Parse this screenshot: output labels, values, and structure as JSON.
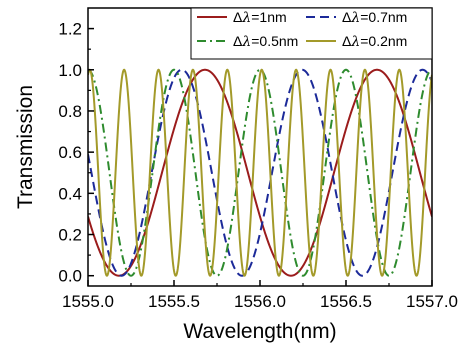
{
  "chart_data": {
    "type": "line",
    "xlabel": "Wavelength(nm)",
    "ylabel": "Transmission",
    "xlim": [
      1555.0,
      1557.0
    ],
    "ylim": [
      -0.05,
      1.3
    ],
    "xticks": [
      1555.0,
      1555.5,
      1556.0,
      1556.5,
      1557.0
    ],
    "xtick_labels": [
      "1555.0",
      "1555.5",
      "1556.0",
      "1556.5",
      "1557.0"
    ],
    "yticks": [
      0.0,
      0.2,
      0.4,
      0.6,
      0.8,
      1.0,
      1.2
    ],
    "ytick_labels": [
      "0.0",
      "0.2",
      "0.4",
      "0.6",
      "0.8",
      "1.0",
      "1.2"
    ],
    "legend_placement": "top-right",
    "series": [
      {
        "name_prefix": "Δ",
        "name_symbol": "λ",
        "name_suffix": "=1nm",
        "color": "#9b1c1c",
        "dash": "solid",
        "fsr": 1.0,
        "peaks": [
          1555.68,
          1556.68
        ]
      },
      {
        "name_prefix": "Δ",
        "name_symbol": "λ",
        "name_suffix": "=0.7nm",
        "color": "#1c2a99",
        "dash": "dash",
        "fsr": 0.7,
        "peaks": [
          1555.545,
          1556.245,
          1556.945
        ]
      },
      {
        "name_prefix": "Δ",
        "name_symbol": "λ",
        "name_suffix": "=0.5nm",
        "color": "#2e8b2e",
        "dash": "dashdot",
        "fsr": 0.5,
        "peaks": [
          1555.0,
          1555.5,
          1556.0,
          1556.5,
          1557.0
        ]
      },
      {
        "name_prefix": "Δ",
        "name_symbol": "λ",
        "name_suffix": "=0.2nm",
        "color": "#a39a2a",
        "dash": "solid",
        "fsr": 0.2,
        "peaks": [
          1555.01,
          1555.21,
          1555.41,
          1555.61,
          1555.81,
          1556.01,
          1556.21,
          1556.41,
          1556.61,
          1556.81
        ]
      }
    ]
  }
}
